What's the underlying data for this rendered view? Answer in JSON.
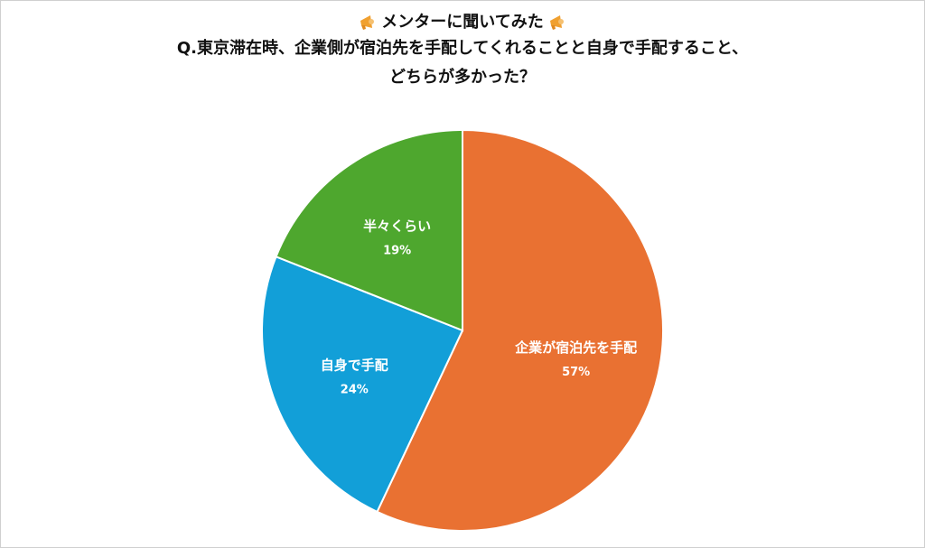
{
  "header": {
    "title": "メンターに聞いてみた",
    "question_line1": "Q.東京滞在時、企業側が宿泊先を手配してくれることと自身で手配すること、",
    "question_line2": "どちらが多かった？"
  },
  "colors": {
    "orange": "#E97132",
    "blue": "#129FD8",
    "green": "#4EA72E",
    "horn": "#F0A030"
  },
  "icons": [
    "megaphone-icon",
    "megaphone-icon"
  ],
  "chart_data": {
    "type": "pie",
    "title": "",
    "start_angle_deg": 0,
    "direction": "clockwise",
    "slices": [
      {
        "label": "企業が宿泊先を手配",
        "value": 57,
        "value_label": "57%",
        "color": "#E97132"
      },
      {
        "label": "自身で手配",
        "value": 24,
        "value_label": "24%",
        "color": "#129FD8"
      },
      {
        "label": "半々くらい",
        "value": 19,
        "value_label": "19%",
        "color": "#4EA72E"
      }
    ]
  }
}
